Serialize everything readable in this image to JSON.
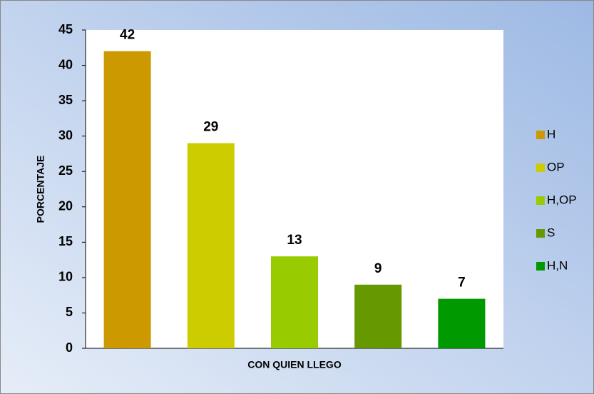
{
  "chart_data": {
    "type": "bar",
    "categories": [
      "H",
      "OP",
      "H,OP",
      "S",
      "H,N"
    ],
    "values": [
      42,
      29,
      13,
      9,
      7
    ],
    "colors": [
      "#cc9900",
      "#cccc00",
      "#99cc00",
      "#669900",
      "#009900"
    ],
    "xlabel": "CON QUIEN LLEGO",
    "ylabel": "PORCENTAJE",
    "ylim": [
      0,
      45
    ],
    "yticks": [
      0,
      5,
      10,
      15,
      20,
      25,
      30,
      35,
      40,
      45
    ],
    "grid": false,
    "legend": "right"
  }
}
